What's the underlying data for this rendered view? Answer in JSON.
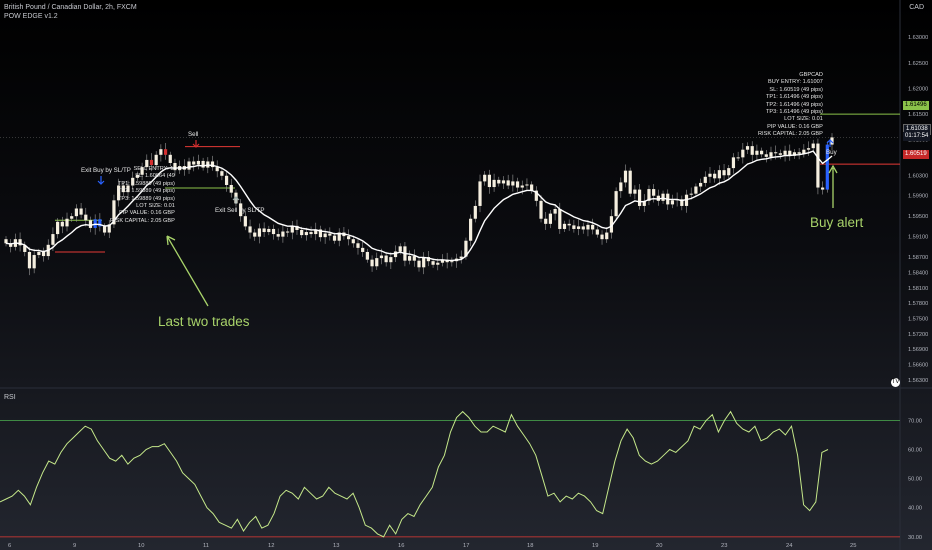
{
  "header": {
    "symbol_line": "British Pound / Canadian Dollar, 2h, FXCM",
    "indicator": "POW EDGE v1.2",
    "currency": "CAD"
  },
  "axis": {
    "price_ticks": [
      "1.63000",
      "1.62500",
      "1.62000",
      "1.61500",
      "1.61000",
      "1.60700",
      "1.60300",
      "1.59900",
      "1.59500",
      "1.59100",
      "1.58700",
      "1.58400",
      "1.58100",
      "1.57800",
      "1.57500",
      "1.57200",
      "1.56900",
      "1.56600",
      "1.56300"
    ],
    "price_range": [
      1.5614,
      1.6361
    ],
    "rsi_ticks": [
      "70.00",
      "60.00",
      "50.00",
      "40.00",
      "30.00"
    ],
    "rsi_range": [
      27.2,
      77
    ],
    "date_labels": [
      "6",
      "9",
      "10",
      "11",
      "12",
      "13",
      "16",
      "17",
      "18",
      "19",
      "20",
      "23",
      "24",
      "25"
    ],
    "rsi_levels": [
      70,
      30
    ]
  },
  "price_tags": {
    "tp_value": "1.61496",
    "current_value": "1.61038",
    "countdown": "01:17:54",
    "sl_value": "1.60519"
  },
  "annotations": {
    "last_two_trades": "Last two trades",
    "buy_alert": "Buy alert"
  },
  "signals": {
    "exit_buy": "Exit Buy by SL/TP",
    "sell": "Sell",
    "exit_sell": "Exit Sell by SL/TP",
    "buy": "Buy"
  },
  "sell_box": {
    "lines": [
      "SELL ENTRY: 1.",
      "SL: 1.60864 (49",
      "TP1: 1.59889 (49 pips)",
      "TP2: 1.59889 (49 pips)",
      "TP3: 1.59889 (49 pips)",
      "LOT SIZE: 0.01",
      "PIP VALUE: 0.16 GBP",
      "RISK CAPITAL: 2.05 GBP"
    ]
  },
  "buy_box": {
    "lines": [
      "GBPCAD",
      "BUY ENTRY: 1.61007",
      "SL: 1.60519 (49 pips)",
      "TP1: 1.61496 (49 pips)",
      "TP2: 1.61496 (49 pips)",
      "TP3: 1.61496 (49 pips)",
      "LOT SIZE: 0.01",
      "PIP VALUE: 0.16 GBP",
      "RISK CAPITAL: 2.05 GBP"
    ]
  },
  "rsi_panel": {
    "label": "RSI"
  },
  "tv_logo": "TV",
  "colors": {
    "up_candle": "#f5efe0",
    "down_candle": "#f5efe0",
    "ma_line": "#ffffff",
    "rsi_line": "#c5e88a",
    "tp_line": "#8bc34a",
    "sl_line": "#e53935",
    "buy_marker": "#2962ff",
    "annotation": "#a8d36a"
  },
  "chart_data": {
    "type": "candlestick",
    "ylim": [
      1.5614,
      1.6361
    ],
    "closes": [
      1.5897,
      1.589,
      1.5905,
      1.5893,
      1.588,
      1.5848,
      1.5874,
      1.588,
      1.5872,
      1.5894,
      1.5915,
      1.5939,
      1.593,
      1.5945,
      1.595,
      1.5965,
      1.5953,
      1.5942,
      1.5927,
      1.5944,
      1.593,
      1.5918,
      1.5934,
      1.5981,
      1.601,
      1.5997,
      1.601,
      1.6025,
      1.6031,
      1.6046,
      1.606,
      1.605,
      1.607,
      1.6081,
      1.607,
      1.6054,
      1.604,
      1.6048,
      1.6041,
      1.6057,
      1.6051,
      1.6058,
      1.6045,
      1.6057,
      1.6046,
      1.6038,
      1.6029,
      1.6011,
      1.5996,
      1.5975,
      1.595,
      1.593,
      1.5918,
      1.591,
      1.5926,
      1.5919,
      1.5925,
      1.5915,
      1.591,
      1.592,
      1.5918,
      1.5931,
      1.5923,
      1.5913,
      1.5919,
      1.5915,
      1.5924,
      1.5909,
      1.5916,
      1.5912,
      1.5902,
      1.5918,
      1.5911,
      1.5905,
      1.5897,
      1.5888,
      1.588,
      1.5865,
      1.5852,
      1.5868,
      1.5873,
      1.586,
      1.587,
      1.5881,
      1.5891,
      1.5863,
      1.5872,
      1.5863,
      1.585,
      1.587,
      1.5862,
      1.5855,
      1.5859,
      1.5865,
      1.586,
      1.5862,
      1.5867,
      1.5871,
      1.5902,
      1.5945,
      1.597,
      1.6018,
      1.6031,
      1.6007,
      1.6021,
      1.6014,
      1.602,
      1.601,
      1.6018,
      1.6006,
      1.601,
      1.6012,
      1.6,
      1.598,
      1.5945,
      1.5935,
      1.5955,
      1.5964,
      1.5925,
      1.5935,
      1.5932,
      1.5925,
      1.593,
      1.5924,
      1.5933,
      1.5924,
      1.5914,
      1.5905,
      1.5918,
      1.595,
      1.5999,
      1.6016,
      1.6039,
      1.5994,
      1.6002,
      1.597,
      1.598,
      1.6003,
      1.599,
      1.598,
      1.5994,
      1.5973,
      1.5981,
      1.5983,
      1.597,
      1.5992,
      1.5994,
      1.6008,
      1.6015,
      1.6027,
      1.6033,
      1.6024,
      1.604,
      1.603,
      1.6044,
      1.6065,
      1.6065,
      1.608,
      1.6087,
      1.607,
      1.6078,
      1.6071,
      1.6066,
      1.6075,
      1.6073,
      1.607,
      1.6078,
      1.6068,
      1.6075,
      1.6072,
      1.608,
      1.6083,
      1.6092,
      1.6006,
      1.6002,
      1.609,
      1.6104
    ],
    "rsi": [
      42,
      43,
      44,
      46,
      44,
      41,
      47,
      52,
      56,
      55,
      59,
      62,
      64,
      66,
      68,
      67,
      63,
      60,
      57,
      56,
      58,
      55,
      57,
      58,
      60,
      61,
      61,
      62,
      59,
      56,
      52,
      50,
      48,
      44,
      40,
      38,
      35,
      34,
      33,
      36,
      32,
      35,
      37,
      33,
      34,
      38,
      44,
      46,
      45,
      43,
      47,
      45,
      43,
      44,
      47,
      45,
      44,
      43,
      45,
      40,
      34,
      33,
      31,
      30,
      34,
      31,
      36,
      38,
      37,
      41,
      44,
      47,
      54,
      58,
      66,
      71,
      73,
      71,
      68,
      66,
      66,
      68,
      67,
      66,
      72,
      68,
      65,
      62,
      58,
      51,
      44,
      45,
      42,
      44,
      43,
      45,
      44,
      42,
      39,
      38,
      47,
      56,
      63,
      67,
      64,
      58,
      56,
      55,
      56,
      58,
      60,
      59,
      61,
      63,
      68,
      67,
      70,
      72,
      66,
      70,
      73,
      69,
      67,
      66,
      68,
      63,
      64,
      66,
      67,
      65,
      68,
      58,
      41,
      39,
      42,
      59,
      60
    ]
  }
}
